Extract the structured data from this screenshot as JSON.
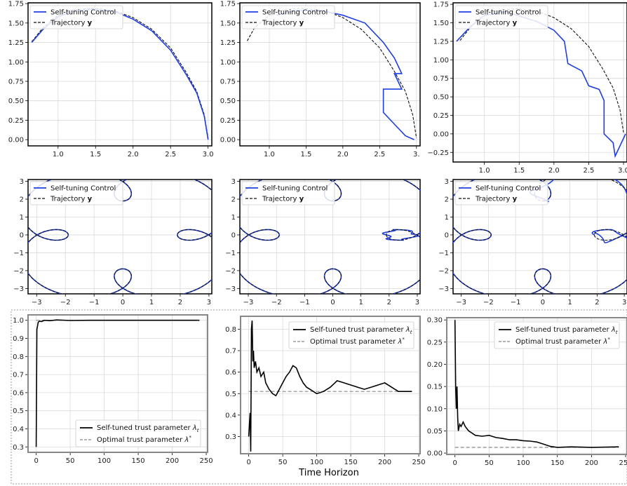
{
  "xlabel_bottom": "Time Horizon",
  "legend_top": {
    "control": "Self-tuning Control",
    "trajectory_prefix": "Trajectory ",
    "trajectory_symbol": "y"
  },
  "legend_bottom": {
    "tuned_prefix": "Self-tuned trust parameter ",
    "tuned_symbol": "λ",
    "tuned_subscript": "t",
    "optimal_prefix": "Optimal trust parameter ",
    "optimal_symbol": "λ",
    "optimal_superscript": "*"
  },
  "colors": {
    "control": "#1f3fe0",
    "trajectory": "#111111",
    "lambda": "#000000",
    "optimal": "#888888",
    "grid": "#d9d9d9"
  },
  "chart_data": [
    {
      "id": "arc-1",
      "type": "line",
      "xlim": [
        0.6,
        3.05
      ],
      "ylim": [
        -0.08,
        1.76
      ],
      "xticks": [
        "1.0",
        "1.5",
        "2.0",
        "2.5",
        "3.0"
      ],
      "yticks": [
        "0.00",
        "0.25",
        "0.50",
        "0.75",
        "1.00",
        "1.25",
        "1.50",
        "1.75"
      ],
      "grid": true,
      "legend": "top-left",
      "series": [
        {
          "name": "Self-tuning Control",
          "x": [
            0.65,
            0.8,
            1.0,
            1.2,
            1.45,
            1.75,
            2.0,
            2.25,
            2.5,
            2.7,
            2.85,
            2.95,
            3.0
          ],
          "y": [
            1.25,
            1.42,
            1.58,
            1.65,
            1.68,
            1.65,
            1.55,
            1.4,
            1.15,
            0.85,
            0.6,
            0.3,
            0.0
          ]
        },
        {
          "name": "Trajectory y",
          "x": [
            0.65,
            0.8,
            1.0,
            1.2,
            1.45,
            1.75,
            2.0,
            2.25,
            2.5,
            2.7,
            2.85,
            2.95,
            3.0
          ],
          "y": [
            1.26,
            1.44,
            1.6,
            1.67,
            1.69,
            1.66,
            1.57,
            1.42,
            1.18,
            0.88,
            0.62,
            0.32,
            0.02
          ]
        }
      ]
    },
    {
      "id": "arc-2",
      "type": "line",
      "xlim": [
        0.6,
        3.05
      ],
      "ylim": [
        -0.08,
        1.76
      ],
      "xticks": [
        "1.0",
        "1.5",
        "2.0",
        "2.5",
        "3."
      ],
      "yticks": [
        "0.00",
        "0.25",
        "0.50",
        "0.75",
        "1.00",
        "1.25",
        "1.50",
        "1.75"
      ],
      "grid": true,
      "legend": "top-left",
      "series": [
        {
          "name": "Self-tuning Control",
          "x": [
            1.1,
            1.35,
            1.7,
            2.0,
            2.3,
            2.55,
            2.7,
            2.8,
            2.7,
            2.8,
            2.55,
            2.55,
            2.7,
            2.85,
            2.97
          ],
          "y": [
            1.6,
            1.66,
            1.66,
            1.6,
            1.5,
            1.25,
            1.05,
            0.85,
            0.85,
            0.65,
            0.65,
            0.35,
            0.2,
            0.05,
            0.0
          ]
        },
        {
          "name": "Trajectory y",
          "x": [
            0.7,
            0.8,
            1.0,
            1.2,
            1.45,
            1.75,
            2.0,
            2.25,
            2.5,
            2.7,
            2.85,
            2.95,
            3.0
          ],
          "y": [
            1.27,
            1.44,
            1.6,
            1.67,
            1.69,
            1.66,
            1.57,
            1.42,
            1.18,
            0.88,
            0.62,
            0.32,
            0.02
          ]
        }
      ]
    },
    {
      "id": "arc-3",
      "type": "line",
      "xlim": [
        0.55,
        3.05
      ],
      "ylim": [
        -0.38,
        1.77
      ],
      "xticks": [
        "0.5",
        "1.0",
        "1.5",
        "2.0",
        "2.5",
        "3.0"
      ],
      "yticks": [
        "−0.25",
        "0.00",
        "0.25",
        "0.50",
        "0.75",
        "1.00",
        "1.25",
        "1.50",
        "1.75"
      ],
      "grid": true,
      "legend": "top-left",
      "series": [
        {
          "name": "Self-tuning Control",
          "x": [
            0.6,
            0.8,
            1.0,
            1.3,
            1.75,
            2.0,
            2.15,
            2.2,
            2.4,
            2.5,
            2.65,
            2.72,
            2.72,
            2.85,
            2.88,
            2.98,
            3.03
          ],
          "y": [
            1.25,
            1.45,
            1.6,
            1.65,
            1.52,
            1.4,
            1.25,
            0.95,
            0.85,
            0.65,
            0.6,
            0.45,
            0.0,
            -0.12,
            -0.3,
            -0.1,
            0.0
          ]
        },
        {
          "name": "Trajectory y",
          "x": [
            0.65,
            0.8,
            1.0,
            1.2,
            1.45,
            1.75,
            2.0,
            2.25,
            2.5,
            2.7,
            2.85,
            2.95,
            3.0
          ],
          "y": [
            1.26,
            1.44,
            1.6,
            1.67,
            1.69,
            1.66,
            1.57,
            1.42,
            1.18,
            0.88,
            0.62,
            0.32,
            0.02
          ]
        }
      ]
    },
    {
      "id": "loop-1",
      "type": "line",
      "shape": "loops",
      "perturb": 0,
      "xlim": [
        -3.3,
        3.1
      ],
      "ylim": [
        -3.3,
        3.1
      ],
      "xticks": [
        "−3",
        "−2",
        "−1",
        "0",
        "1",
        "2",
        "3"
      ],
      "yticks": [
        "−3",
        "−2",
        "−1",
        "0",
        "1",
        "2",
        "3"
      ],
      "grid": true,
      "legend": "top-left",
      "series": [
        {
          "name": "Self-tuning Control"
        },
        {
          "name": "Trajectory y"
        }
      ]
    },
    {
      "id": "loop-2",
      "type": "line",
      "shape": "loops",
      "perturb": 1,
      "xlim": [
        -3.3,
        3.1
      ],
      "ylim": [
        -3.3,
        3.1
      ],
      "xticks": [
        "−3",
        "−2",
        "−1",
        "0",
        "1",
        "2",
        "3"
      ],
      "yticks": [
        "−3",
        "−2",
        "−1",
        "0",
        "1",
        "2",
        "3"
      ],
      "grid": true,
      "legend": "top-left",
      "series": [
        {
          "name": "Self-tuning Control"
        },
        {
          "name": "Trajectory y"
        }
      ]
    },
    {
      "id": "loop-3",
      "type": "line",
      "shape": "loops",
      "perturb": 2,
      "xlim": [
        -3.3,
        3.1
      ],
      "ylim": [
        -3.3,
        3.1
      ],
      "xticks": [
        "−3",
        "−2",
        "−1",
        "0",
        "1",
        "2",
        "3"
      ],
      "yticks": [
        "−3",
        "−2",
        "−1",
        "0",
        "1",
        "2",
        "3"
      ],
      "grid": true,
      "legend": "top-left",
      "series": [
        {
          "name": "Self-tuning Control"
        },
        {
          "name": "Trajectory y"
        }
      ]
    },
    {
      "id": "lambda-1",
      "type": "line",
      "xlim": [
        -12,
        252
      ],
      "ylim": [
        0.27,
        1.03
      ],
      "xticks": [
        "0",
        "50",
        "100",
        "150",
        "200",
        "250"
      ],
      "yticks": [
        "0.3",
        "0.4",
        "0.5",
        "0.6",
        "0.7",
        "0.8",
        "0.9",
        "1.0"
      ],
      "grid": true,
      "legend": "bottom-right",
      "series": [
        {
          "name": "Self-tuned trust parameter λt",
          "x": [
            0,
            1,
            2,
            3,
            5,
            8,
            12,
            20,
            30,
            50,
            80,
            120,
            160,
            200,
            240
          ],
          "y": [
            0.3,
            0.95,
            0.97,
            0.99,
            0.995,
            0.993,
            1.0,
            0.998,
            1.002,
            0.999,
            1.0,
            1.0,
            1.0,
            1.0,
            1.0
          ]
        },
        {
          "name": "Optimal trust parameter λ*",
          "x": [
            0,
            240
          ],
          "y": [
            1.0,
            1.0
          ]
        }
      ]
    },
    {
      "id": "lambda-2",
      "type": "line",
      "xlim": [
        -12,
        252
      ],
      "ylim": [
        0.22,
        0.86
      ],
      "xticks": [
        "0",
        "50",
        "100",
        "150",
        "200",
        "250"
      ],
      "yticks": [
        "0.3",
        "0.4",
        "0.5",
        "0.6",
        "0.7",
        "0.8"
      ],
      "grid": true,
      "legend": "top-right",
      "series": [
        {
          "name": "Self-tuned trust parameter λt",
          "x": [
            0,
            2,
            3,
            4,
            5,
            6,
            7,
            8,
            10,
            12,
            15,
            18,
            22,
            25,
            30,
            35,
            40,
            45,
            50,
            55,
            60,
            65,
            70,
            75,
            80,
            85,
            90,
            100,
            110,
            120,
            130,
            140,
            150,
            160,
            170,
            180,
            190,
            200,
            210,
            220,
            230,
            240
          ],
          "y": [
            0.3,
            0.41,
            0.23,
            0.8,
            0.84,
            0.65,
            0.7,
            0.62,
            0.65,
            0.6,
            0.62,
            0.58,
            0.6,
            0.55,
            0.52,
            0.5,
            0.49,
            0.52,
            0.55,
            0.58,
            0.6,
            0.63,
            0.62,
            0.58,
            0.55,
            0.53,
            0.52,
            0.5,
            0.51,
            0.53,
            0.56,
            0.55,
            0.54,
            0.53,
            0.52,
            0.53,
            0.54,
            0.55,
            0.53,
            0.51,
            0.51,
            0.51
          ]
        },
        {
          "name": "Optimal trust parameter λ*",
          "x": [
            0,
            240
          ],
          "y": [
            0.51,
            0.51
          ]
        }
      ]
    },
    {
      "id": "lambda-3",
      "type": "line",
      "xlim": [
        -12,
        252
      ],
      "ylim": [
        -0.003,
        0.305
      ],
      "xticks": [
        "0",
        "50",
        "100",
        "150",
        "200",
        "250"
      ],
      "yticks": [
        "0.00",
        "0.05",
        "0.10",
        "0.15",
        "0.20",
        "0.25",
        "0.30"
      ],
      "grid": true,
      "legend": "top-right",
      "series": [
        {
          "name": "Self-tuned trust parameter λt",
          "x": [
            0,
            1,
            2,
            3,
            4,
            5,
            7,
            9,
            12,
            15,
            20,
            25,
            30,
            40,
            50,
            60,
            70,
            80,
            90,
            100,
            110,
            120,
            130,
            140,
            150,
            170,
            200,
            240
          ],
          "y": [
            0.3,
            0.15,
            0.1,
            0.15,
            0.08,
            0.05,
            0.065,
            0.06,
            0.07,
            0.06,
            0.05,
            0.045,
            0.04,
            0.038,
            0.04,
            0.035,
            0.033,
            0.03,
            0.03,
            0.028,
            0.027,
            0.025,
            0.02,
            0.015,
            0.013,
            0.014,
            0.013,
            0.014
          ]
        },
        {
          "name": "Optimal trust parameter λ*",
          "x": [
            0,
            240
          ],
          "y": [
            0.013,
            0.013
          ]
        }
      ]
    }
  ]
}
